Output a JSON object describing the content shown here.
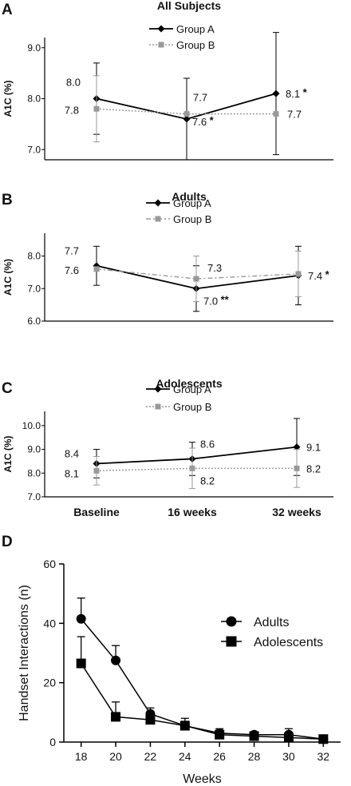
{
  "chart_data": [
    {
      "panel": "A",
      "type": "line",
      "title": "All Subjects",
      "ylabel": "A1C (%)",
      "ylim": [
        6.8,
        9.2
      ],
      "yticks": [
        "7.0",
        "8.0",
        "9.0"
      ],
      "categories": [
        "Baseline",
        "16 weeks",
        "32 weeks"
      ],
      "series": [
        {
          "name": "Group A",
          "color": "#000000",
          "marker": "diamond",
          "style": "solid",
          "values": [
            8.0,
            7.6,
            8.1
          ],
          "error": [
            0.7,
            0.8,
            1.2
          ],
          "labels": [
            "8.0",
            "7.6",
            "8.1"
          ],
          "marks": [
            "",
            "*",
            "*"
          ]
        },
        {
          "name": "Group B",
          "color": "#999999",
          "marker": "square",
          "style": "dotted",
          "values": [
            7.8,
            7.7,
            7.7
          ],
          "error": [
            0.65,
            0.0,
            0.0
          ],
          "labels": [
            "7.8",
            "7.7",
            "7.7"
          ],
          "marks": [
            "",
            "",
            ""
          ]
        }
      ]
    },
    {
      "panel": "B",
      "type": "line",
      "title": "Adults",
      "ylabel": "A1C (%)",
      "ylim": [
        6.0,
        8.7
      ],
      "yticks": [
        "6.0",
        "7.0",
        "8.0"
      ],
      "categories": [
        "Baseline",
        "16 weeks",
        "32 weeks"
      ],
      "series": [
        {
          "name": "Group A",
          "color": "#000000",
          "marker": "diamond",
          "style": "solid",
          "values": [
            7.7,
            7.0,
            7.4
          ],
          "error": [
            0.6,
            0.7,
            0.9
          ],
          "labels": [
            "7.7",
            "7.0",
            "7.4"
          ],
          "marks": [
            "",
            "**",
            "*"
          ]
        },
        {
          "name": "Group B",
          "color": "#999999",
          "marker": "square",
          "style": "dashdot",
          "values": [
            7.6,
            7.3,
            7.45
          ],
          "error": [
            0.0,
            0.7,
            0.7
          ],
          "labels": [
            "7.6",
            "7.3",
            ""
          ],
          "marks": [
            "",
            "",
            ""
          ]
        }
      ]
    },
    {
      "panel": "C",
      "type": "line",
      "title": "Adolescents",
      "ylabel": "A1C (%)",
      "ylim": [
        7.0,
        10.6
      ],
      "yticks": [
        "7.0",
        "8.0",
        "9.0",
        "10.0"
      ],
      "categories": [
        "Baseline",
        "16 weeks",
        "32 weeks"
      ],
      "series": [
        {
          "name": "Group A",
          "color": "#000000",
          "marker": "diamond",
          "style": "solid",
          "values": [
            8.4,
            8.6,
            9.1
          ],
          "error": [
            0.6,
            0.7,
            1.2
          ],
          "labels": [
            "8.4",
            "8.6",
            "9.1"
          ],
          "marks": [
            "",
            "",
            ""
          ]
        },
        {
          "name": "Group B",
          "color": "#999999",
          "marker": "square",
          "style": "dotted",
          "values": [
            8.1,
            8.2,
            8.2
          ],
          "error": [
            0.6,
            0.85,
            0.8
          ],
          "labels": [
            "8.1",
            "8.2",
            "8.2"
          ],
          "marks": [
            "",
            "",
            ""
          ]
        }
      ]
    },
    {
      "panel": "D",
      "type": "line",
      "title": "",
      "xlabel": "Weeks",
      "ylabel": "Handset Interactions (n)",
      "ylim": [
        0,
        60
      ],
      "yticks": [
        "0",
        "20",
        "40",
        "60"
      ],
      "x": [
        18,
        20,
        22,
        24,
        26,
        28,
        30,
        32
      ],
      "legend_position": "top-right",
      "series": [
        {
          "name": "Adults",
          "color": "#000000",
          "marker": "circle",
          "values": [
            41.5,
            27.5,
            9.5,
            5.5,
            3.0,
            2.5,
            2.5,
            1.0
          ],
          "error": [
            7.0,
            5.0,
            2.0,
            2.5,
            1.5,
            1.0,
            2.0,
            0.5
          ]
        },
        {
          "name": "Adolescents",
          "color": "#000000",
          "marker": "square",
          "values": [
            26.5,
            8.5,
            7.5,
            5.5,
            2.5,
            2.0,
            1.5,
            1.0
          ],
          "error": [
            9.0,
            5.0,
            2.5,
            1.5,
            1.0,
            0.5,
            0.5,
            0.5
          ]
        }
      ]
    }
  ]
}
